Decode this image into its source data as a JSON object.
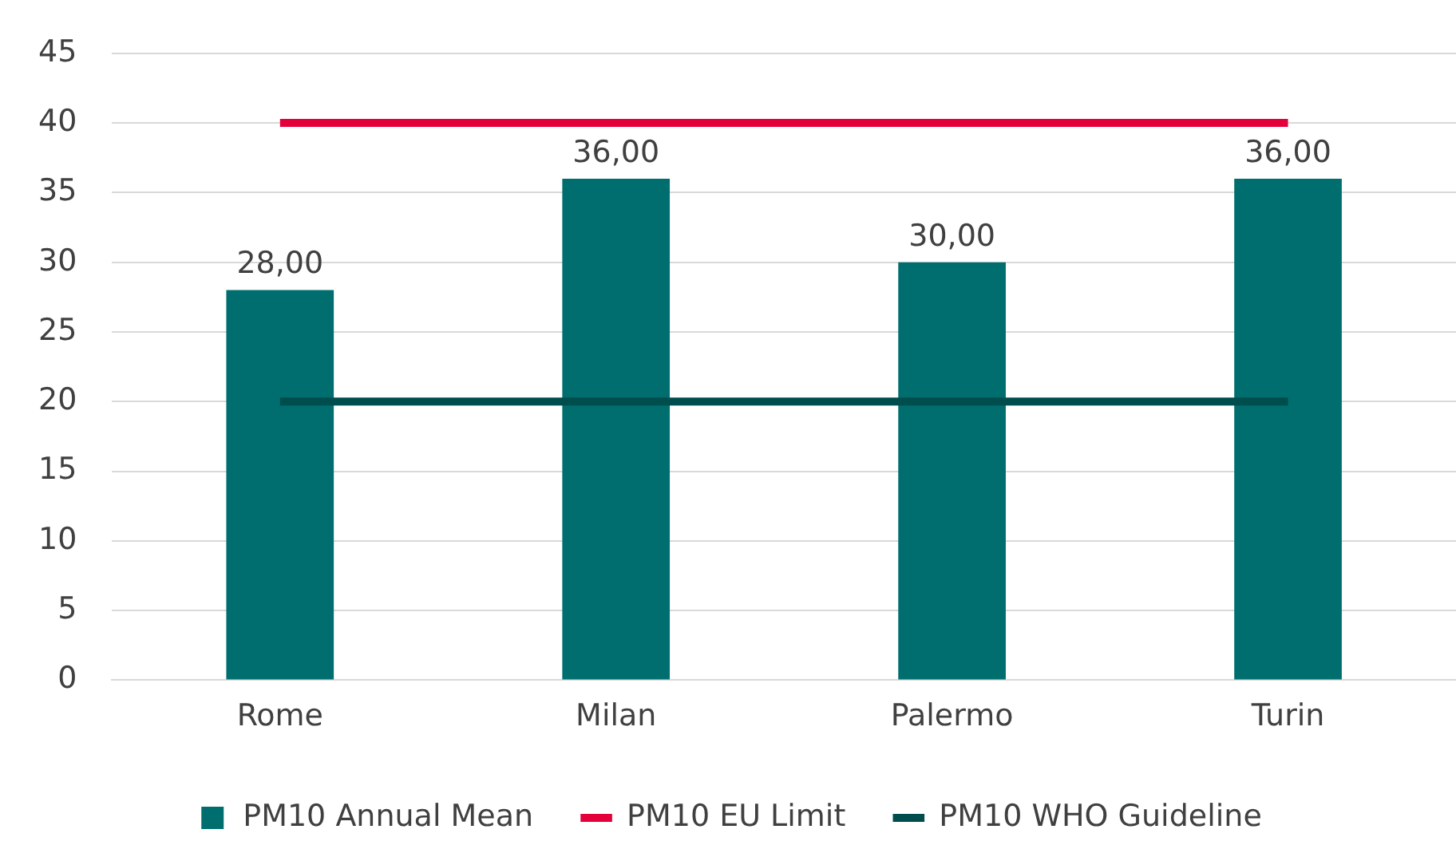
{
  "chart_data": {
    "type": "bar",
    "categories": [
      "Rome",
      "Milan",
      "Palermo",
      "Turin"
    ],
    "series": [
      {
        "name": "PM10 Annual Mean",
        "color": "#006e6e",
        "values": [
          28,
          36,
          30,
          36
        ],
        "value_labels": [
          "28,00",
          "36,00",
          "30,00",
          "36,00"
        ]
      },
      {
        "name": "PM10 EU Limit",
        "type": "line",
        "color": "#e4003b",
        "values": [
          40,
          40,
          40,
          40
        ]
      },
      {
        "name": "PM10 WHO Guideline",
        "type": "line",
        "color": "#004d4d",
        "values": [
          20,
          20,
          20,
          20
        ]
      }
    ],
    "ylim": [
      0,
      45
    ],
    "yticks": [
      0,
      5,
      10,
      15,
      20,
      25,
      30,
      35,
      40,
      45
    ],
    "grid": "y",
    "legend": "bottom",
    "marker": "none",
    "line_style": "solid"
  }
}
